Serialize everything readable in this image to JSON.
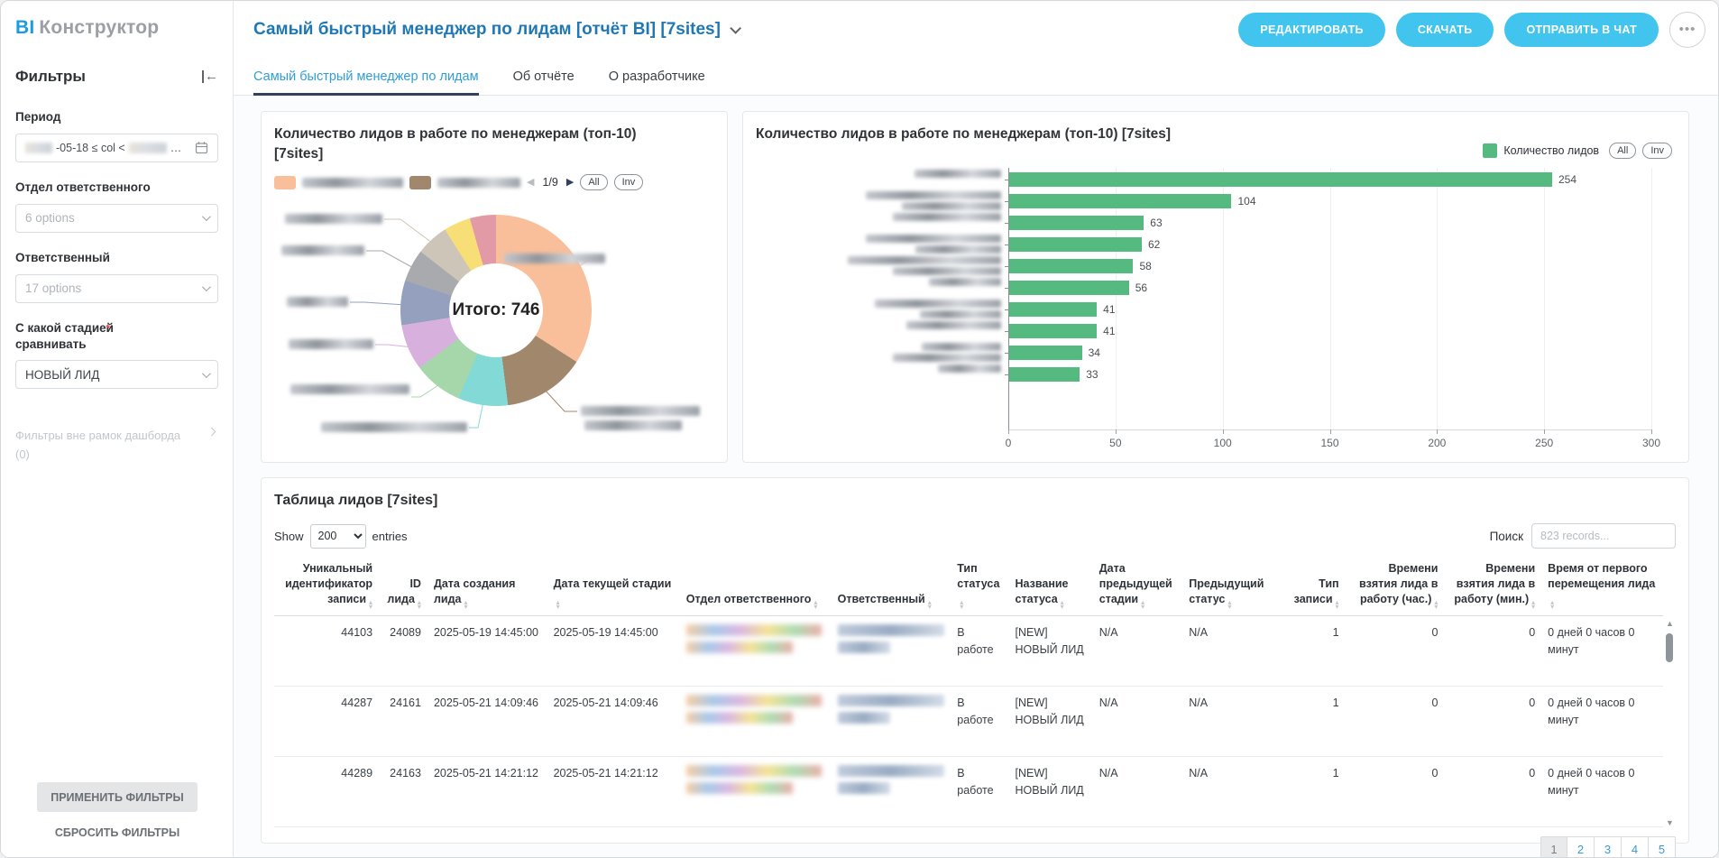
{
  "app": {
    "logo_bi": "BI",
    "logo_name": "Конструктор"
  },
  "header": {
    "title": "Самый быстрый менеджер по лидам [отчёт BI] [7sites]",
    "edit_label": "РЕДАКТИРОВАТЬ",
    "download_label": "СКАЧАТЬ",
    "send_chat_label": "ОТПРАВИТЬ В ЧАТ",
    "more_label": "•••"
  },
  "tabs": [
    {
      "label": "Самый быстрый менеджер по лидам",
      "active": true
    },
    {
      "label": "Об отчёте",
      "active": false
    },
    {
      "label": "О разработчике",
      "active": false
    }
  ],
  "sidebar": {
    "title": "Фильтры",
    "period": {
      "label": "Период",
      "value_visible": "-05-18 ≤ col <",
      "value_suffix": "…"
    },
    "department": {
      "label": "Отдел ответственного",
      "placeholder": "6 options"
    },
    "responsible": {
      "label": "Ответственный",
      "placeholder": "17 options"
    },
    "stage": {
      "label": "С какой стадией сравнивать",
      "required_mark": "*",
      "value": "НОВЫЙ ЛИД"
    },
    "outer_filters": "Фильтры вне рамок дашборда",
    "outer_filters_count": "(0)",
    "apply_label": "ПРИМЕНИТЬ ФИЛЬТРЫ",
    "reset_label": "СБРОСИТЬ ФИЛЬТРЫ"
  },
  "chart_data": [
    {
      "type": "pie",
      "subtype": "donut",
      "title": "Количество лидов в работе по менеджерам (топ-10) [7sites]",
      "center_label": "Итого: 746",
      "total": 746,
      "values": [
        254,
        104,
        63,
        62,
        58,
        56,
        41,
        41,
        34,
        33
      ],
      "labels_redacted": true,
      "colors": [
        "#f9bf9b",
        "#a1876c",
        "#83d9d6",
        "#a6d7ab",
        "#d8b0dd",
        "#94a0bd",
        "#a8aaad",
        "#cdc5b8",
        "#f8de77",
        "#e29aa6"
      ],
      "legend_pagination": "1/9",
      "legend_all": "All",
      "legend_inv": "Inv"
    },
    {
      "type": "bar",
      "orientation": "horizontal",
      "title": "Количество лидов в работе по менеджерам (топ-10) [7sites]",
      "series_name": "Количество лидов",
      "values": [
        254,
        104,
        63,
        62,
        58,
        56,
        41,
        41,
        34,
        33
      ],
      "categories_redacted": true,
      "color": "#55ba80",
      "xlim": [
        0,
        300
      ],
      "x_ticks": [
        0,
        50,
        100,
        150,
        200,
        250,
        300
      ],
      "legend_all": "All",
      "legend_inv": "Inv"
    }
  ],
  "table": {
    "title": "Таблица лидов [7sites]",
    "show_label": "Show",
    "entries_label": "entries",
    "page_size": "200",
    "search_label": "Поиск",
    "search_placeholder": "823 records...",
    "columns": [
      "Уникальный идентификатор записи",
      "ID лида",
      "Дата создания лида",
      "Дата текущей стадии",
      "Отдел ответственного",
      "Ответственный",
      "Тип статуса",
      "Название статуса",
      "Дата предыдущей стадии",
      "Предыдущий статус",
      "Тип записи",
      "Времени взятия лида в работу (час.)",
      "Времени взятия лида в работу (мин.)",
      "Время от первого перемещения лида"
    ],
    "rows": [
      [
        "44103",
        "24089",
        "2025-05-19 14:45:00",
        "2025-05-19 14:45:00",
        null,
        null,
        "В работе",
        "[NEW] НОВЫЙ ЛИД",
        "N/A",
        "N/A",
        "1",
        "0",
        "0",
        "0 дней 0 часов 0 минут"
      ],
      [
        "44287",
        "24161",
        "2025-05-21 14:09:46",
        "2025-05-21 14:09:46",
        null,
        null,
        "В работе",
        "[NEW] НОВЫЙ ЛИД",
        "N/A",
        "N/A",
        "1",
        "0",
        "0",
        "0 дней 0 часов 0 минут"
      ],
      [
        "44289",
        "24163",
        "2025-05-21 14:21:12",
        "2025-05-21 14:21:12",
        null,
        null,
        "В работе",
        "[NEW] НОВЫЙ ЛИД",
        "N/A",
        "N/A",
        "1",
        "0",
        "0",
        "0 дней 0 часов 0 минут"
      ]
    ],
    "pagination": {
      "pages": [
        "1",
        "2",
        "3",
        "4",
        "5"
      ],
      "active": "1"
    }
  }
}
